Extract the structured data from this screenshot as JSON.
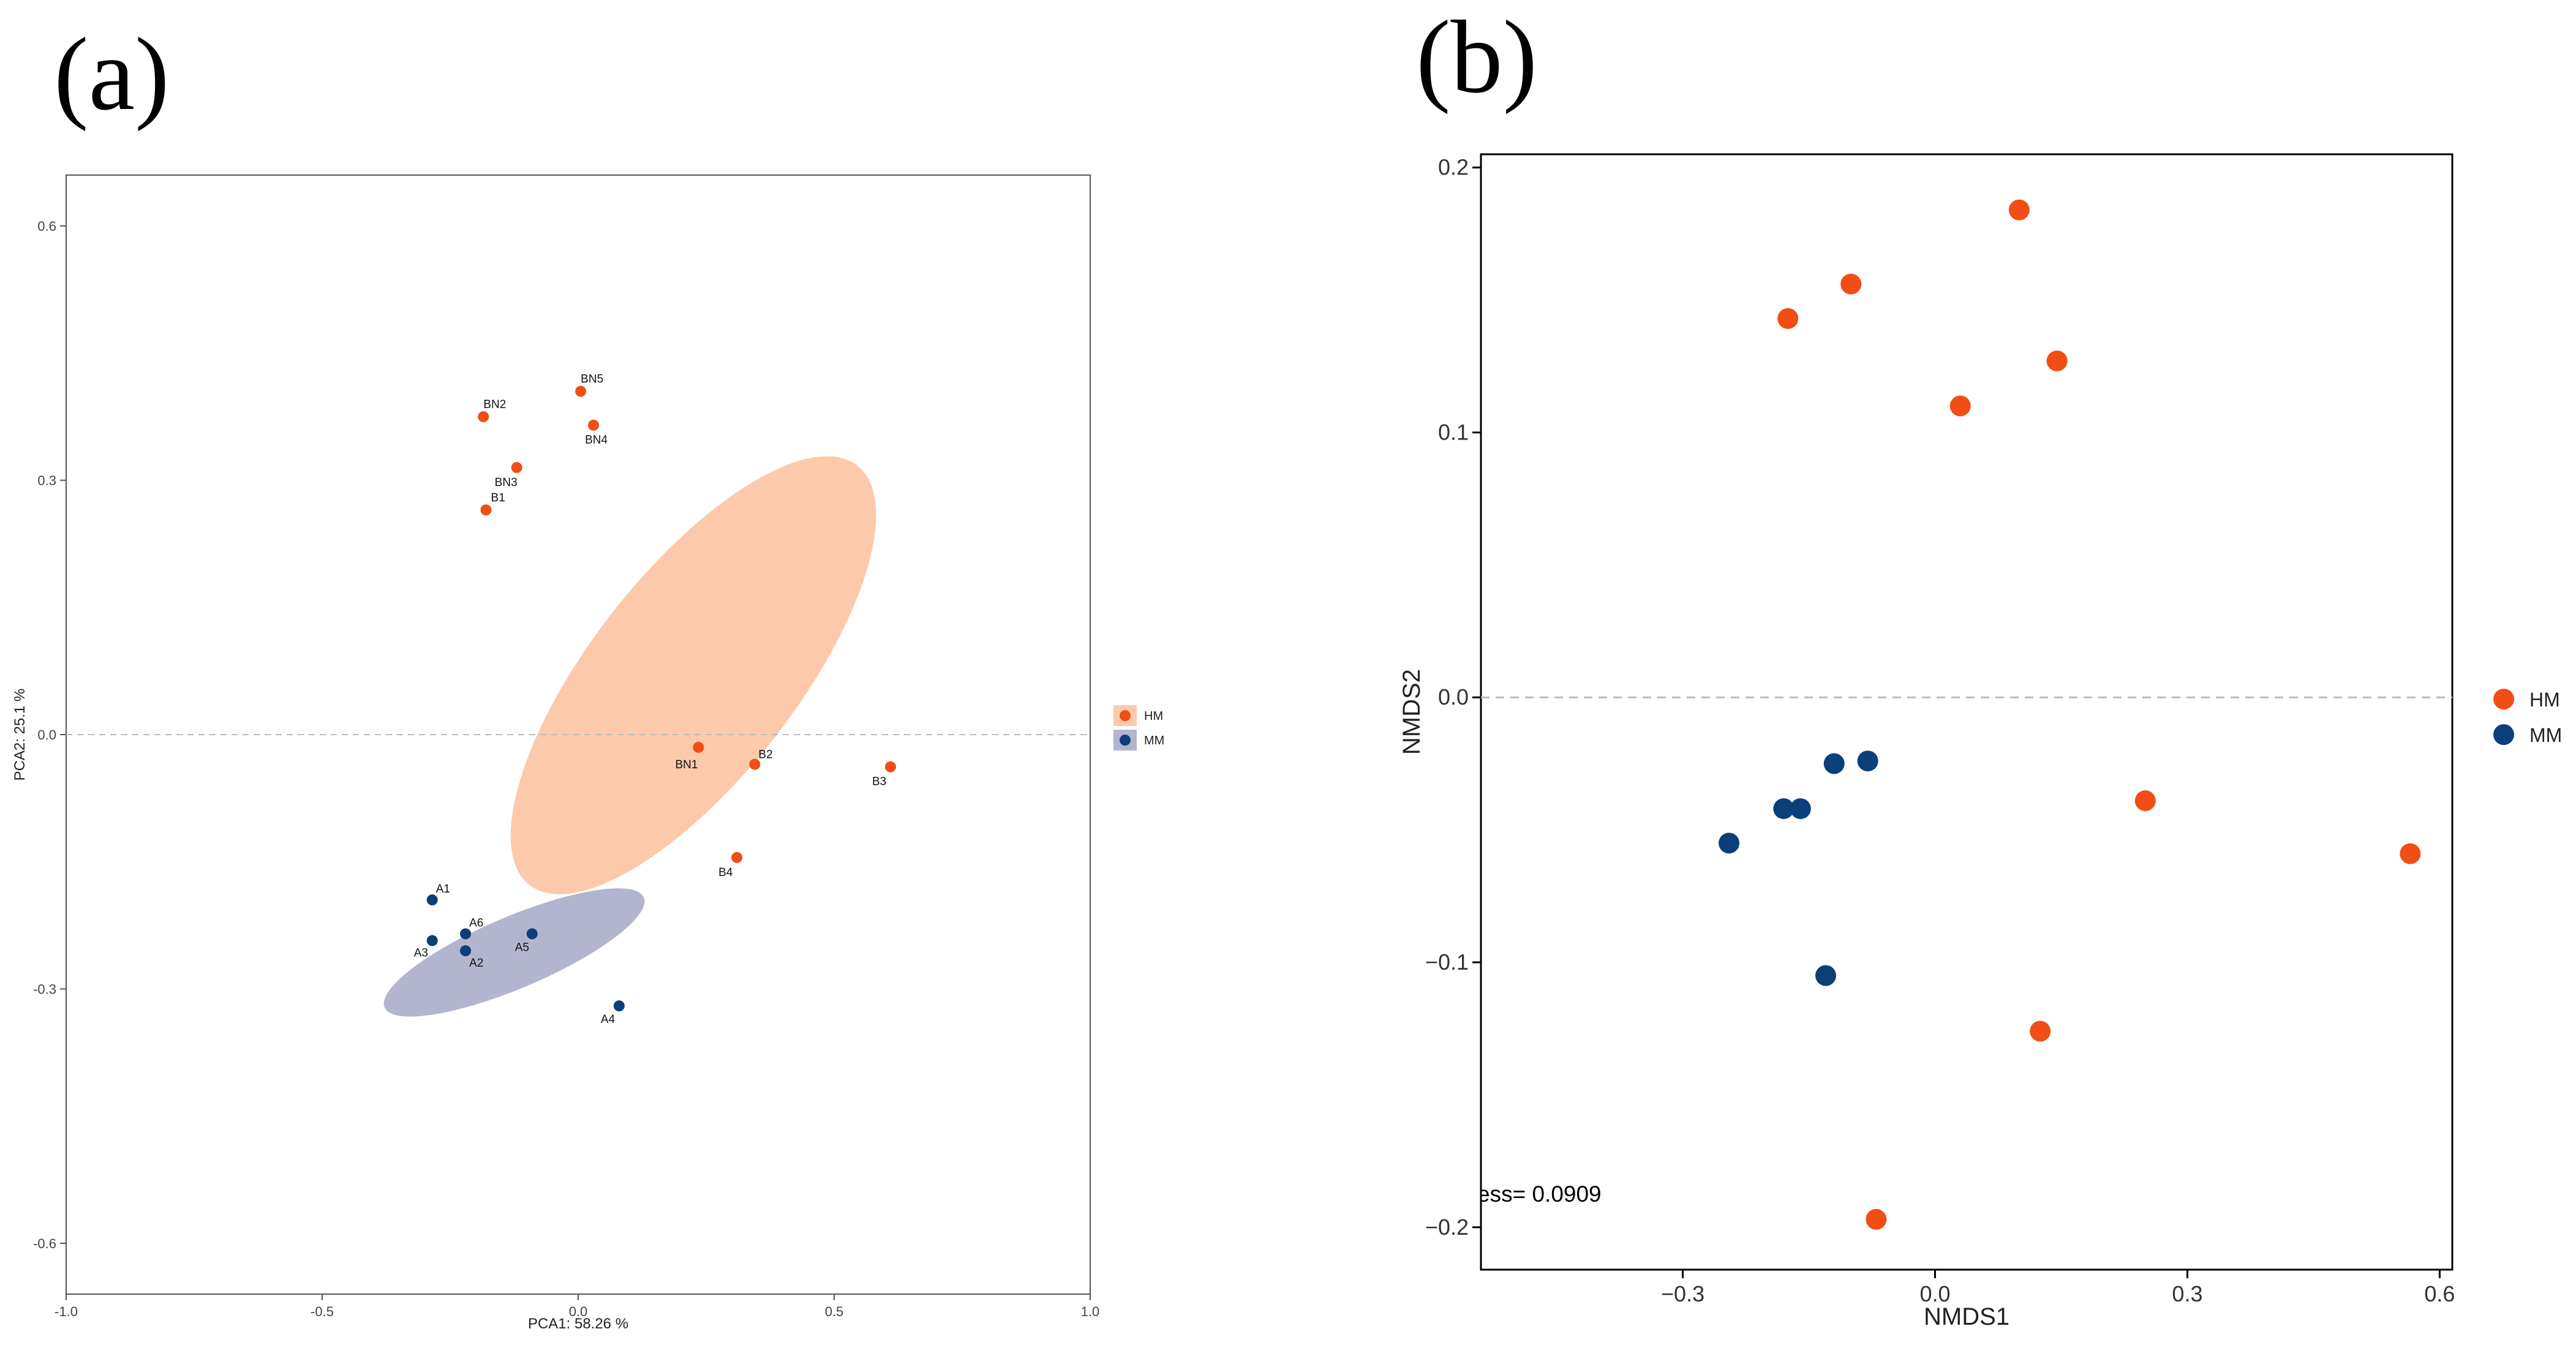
{
  "panel_labels": {
    "a": "(a)",
    "b": "(b)"
  },
  "colors": {
    "HM": "#f04e14",
    "MM": "#0b3f7a",
    "HM_ellipse": "#fcc9ab",
    "MM_ellipse": "#b3b5cf",
    "frame": "#555555",
    "zero_line": "#bbbbbb"
  },
  "chart_data": [
    {
      "type": "scatter",
      "id": "pca",
      "title": "",
      "xlabel": "PCA1: 58.26 %",
      "ylabel": "PCA2: 25.1 %",
      "xlim": [
        -1.0,
        1.0
      ],
      "ylim": [
        -0.66,
        0.66
      ],
      "xticks": [
        -1.0,
        -0.5,
        0.0,
        0.5,
        1.0
      ],
      "xtick_labels": [
        "-1.0",
        "-0.5",
        "0.0",
        "0.5",
        "1.0"
      ],
      "yticks": [
        -0.6,
        -0.3,
        0.0,
        0.3,
        0.6
      ],
      "ytick_labels": [
        "-0.6",
        "-0.3",
        "0.0",
        "0.3",
        "0.6"
      ],
      "zero_line": 0.0,
      "legend": {
        "position": "right",
        "entries": [
          "HM",
          "MM"
        ]
      },
      "ellipses": [
        {
          "group": "HM",
          "cx": 0.225,
          "cy": 0.07,
          "rx": 0.52,
          "ry": 0.2,
          "angle_deg": -52
        },
        {
          "group": "MM",
          "cx": -0.125,
          "cy": -0.257,
          "rx": 0.275,
          "ry": 0.07,
          "angle_deg": -23
        }
      ],
      "series": [
        {
          "name": "HM",
          "points": [
            {
              "label": "BN5",
              "x": 0.005,
              "y": 0.405
            },
            {
              "label": "BN2",
              "x": -0.185,
              "y": 0.375
            },
            {
              "label": "BN4",
              "x": 0.03,
              "y": 0.365
            },
            {
              "label": "BN3",
              "x": -0.12,
              "y": 0.315
            },
            {
              "label": "B1",
              "x": -0.18,
              "y": 0.265
            },
            {
              "label": "BN1",
              "x": 0.235,
              "y": -0.015
            },
            {
              "label": "B2",
              "x": 0.345,
              "y": -0.035
            },
            {
              "label": "B3",
              "x": 0.61,
              "y": -0.038
            },
            {
              "label": "B4",
              "x": 0.31,
              "y": -0.145
            }
          ]
        },
        {
          "name": "MM",
          "points": [
            {
              "label": "A1",
              "x": -0.285,
              "y": -0.195
            },
            {
              "label": "A6",
              "x": -0.22,
              "y": -0.235
            },
            {
              "label": "A5",
              "x": -0.09,
              "y": -0.235
            },
            {
              "label": "A3",
              "x": -0.285,
              "y": -0.243
            },
            {
              "label": "A2",
              "x": -0.22,
              "y": -0.255
            },
            {
              "label": "A4",
              "x": 0.08,
              "y": -0.32
            }
          ]
        }
      ]
    },
    {
      "type": "scatter",
      "id": "nmds",
      "title": "",
      "xlabel": "NMDS1",
      "ylabel": "NMDS2",
      "xlim": [
        -0.54,
        0.615
      ],
      "ylim": [
        -0.216,
        0.205
      ],
      "xticks": [
        -0.3,
        0.0,
        0.3,
        0.6
      ],
      "xtick_labels": [
        "−0.3",
        "0.0",
        "0.3",
        "0.6"
      ],
      "yticks": [
        -0.2,
        -0.1,
        0.0,
        0.1,
        0.2
      ],
      "ytick_labels": [
        "−0.2",
        "−0.1",
        "0.0",
        "0.1",
        "0.2"
      ],
      "zero_line": 0.0,
      "stress_text": "ess= 0.0909",
      "legend": {
        "position": "right",
        "entries": [
          "HM",
          "MM"
        ]
      },
      "series": [
        {
          "name": "HM",
          "points": [
            {
              "x": 0.1,
              "y": 0.184
            },
            {
              "x": -0.1,
              "y": 0.156
            },
            {
              "x": -0.175,
              "y": 0.143
            },
            {
              "x": 0.145,
              "y": 0.127
            },
            {
              "x": 0.03,
              "y": 0.11
            },
            {
              "x": 0.25,
              "y": -0.039
            },
            {
              "x": 0.565,
              "y": -0.059
            },
            {
              "x": 0.125,
              "y": -0.126
            },
            {
              "x": -0.07,
              "y": -0.197
            }
          ]
        },
        {
          "name": "MM",
          "points": [
            {
              "x": -0.08,
              "y": -0.024
            },
            {
              "x": -0.12,
              "y": -0.025
            },
            {
              "x": -0.18,
              "y": -0.042
            },
            {
              "x": -0.16,
              "y": -0.042
            },
            {
              "x": -0.245,
              "y": -0.055
            },
            {
              "x": -0.13,
              "y": -0.105
            }
          ]
        }
      ]
    }
  ]
}
